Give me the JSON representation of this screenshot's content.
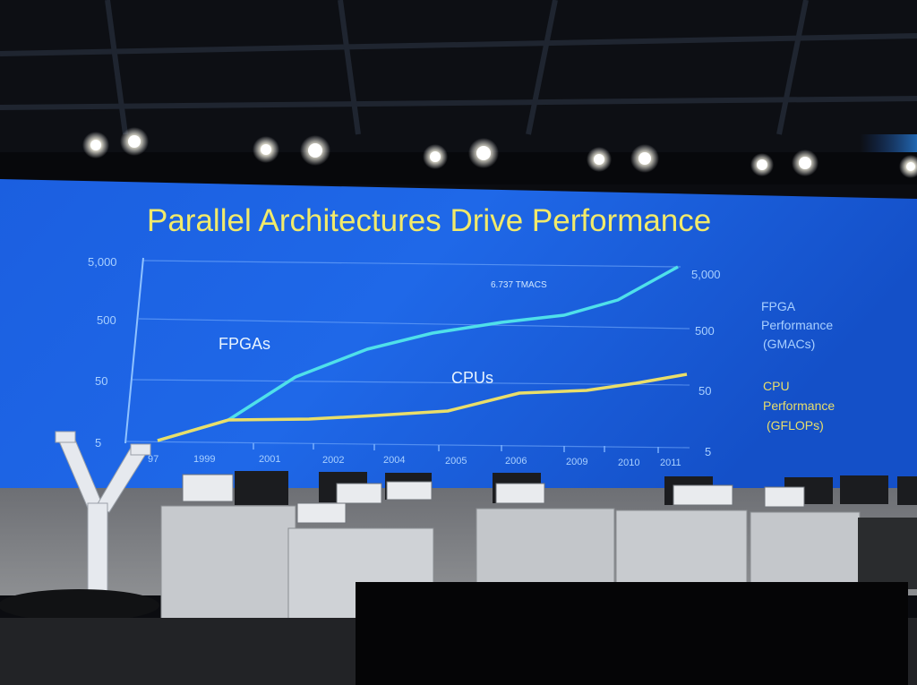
{
  "slide": {
    "title": "Parallel Architectures Drive Performance",
    "left_axis_ticks": [
      "5,000",
      "500",
      "50",
      "5"
    ],
    "right_axis_ticks": [
      "5,000",
      "500",
      "50",
      "5"
    ],
    "year_labels": [
      "97",
      "1999",
      "2001",
      "2002",
      "2004",
      "2005",
      "2006",
      "2009",
      "2010",
      "2011"
    ],
    "fpga_series_label": "FPGAs",
    "cpu_series_label": "CPUs",
    "peak_annotation": "6.737 TMACS",
    "fpga_legend_lines": [
      "FPGA",
      "Performance",
      "(GMACs)"
    ],
    "cpu_legend_lines": [
      "CPU",
      "Performance",
      "(GFLOPs)"
    ]
  },
  "colors": {
    "slide_blue": "#1f63e0",
    "title_yellow": "#f2ea6a",
    "fpga_cyan": "#4fe0ea",
    "cpu_yellow": "#e9de6a",
    "label_blue": "#a9d0ff"
  }
}
